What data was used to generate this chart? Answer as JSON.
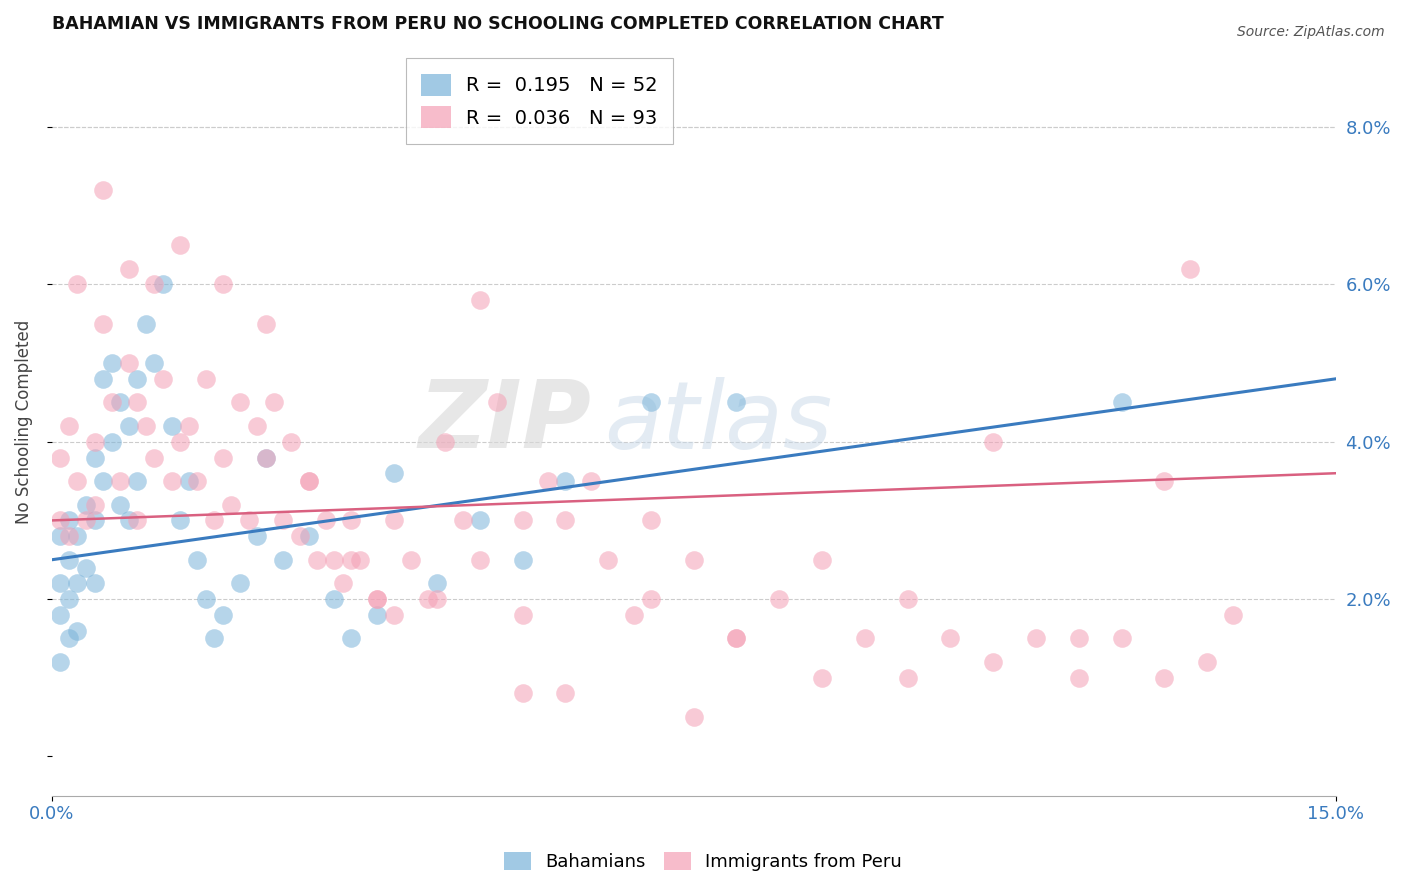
{
  "title": "BAHAMIAN VS IMMIGRANTS FROM PERU NO SCHOOLING COMPLETED CORRELATION CHART",
  "source": "Source: ZipAtlas.com",
  "ylabel": "No Schooling Completed",
  "x_min": 0.0,
  "x_max": 0.15,
  "y_min": -0.005,
  "y_max": 0.09,
  "x_tick_positions": [
    0.0,
    0.15
  ],
  "x_tick_labels": [
    "0.0%",
    "15.0%"
  ],
  "y_ticks_right": [
    0.02,
    0.04,
    0.06,
    0.08
  ],
  "y_tick_labels_right": [
    "2.0%",
    "4.0%",
    "6.0%",
    "8.0%"
  ],
  "bahamians_color": "#7ab3d9",
  "peru_color": "#f4a0b5",
  "blue_line_color": "#3a7bbf",
  "pink_line_color": "#d96080",
  "watermark_zip": "ZIP",
  "watermark_atlas": "atlas",
  "bahamians_x": [
    0.001,
    0.001,
    0.001,
    0.001,
    0.002,
    0.002,
    0.002,
    0.002,
    0.003,
    0.003,
    0.003,
    0.004,
    0.004,
    0.005,
    0.005,
    0.005,
    0.006,
    0.006,
    0.007,
    0.007,
    0.008,
    0.008,
    0.009,
    0.009,
    0.01,
    0.01,
    0.011,
    0.012,
    0.013,
    0.014,
    0.015,
    0.016,
    0.017,
    0.018,
    0.019,
    0.02,
    0.022,
    0.024,
    0.025,
    0.027,
    0.03,
    0.033,
    0.035,
    0.038,
    0.04,
    0.045,
    0.05,
    0.055,
    0.06,
    0.07,
    0.08,
    0.125
  ],
  "bahamians_y": [
    0.028,
    0.022,
    0.018,
    0.012,
    0.03,
    0.025,
    0.02,
    0.015,
    0.028,
    0.022,
    0.016,
    0.032,
    0.024,
    0.038,
    0.03,
    0.022,
    0.048,
    0.035,
    0.05,
    0.04,
    0.045,
    0.032,
    0.042,
    0.03,
    0.048,
    0.035,
    0.055,
    0.05,
    0.06,
    0.042,
    0.03,
    0.035,
    0.025,
    0.02,
    0.015,
    0.018,
    0.022,
    0.028,
    0.038,
    0.025,
    0.028,
    0.02,
    0.015,
    0.018,
    0.036,
    0.022,
    0.03,
    0.025,
    0.035,
    0.045,
    0.045,
    0.045
  ],
  "peru_x": [
    0.001,
    0.001,
    0.002,
    0.002,
    0.003,
    0.004,
    0.005,
    0.005,
    0.006,
    0.007,
    0.008,
    0.009,
    0.01,
    0.01,
    0.011,
    0.012,
    0.013,
    0.014,
    0.015,
    0.016,
    0.017,
    0.018,
    0.019,
    0.02,
    0.021,
    0.022,
    0.023,
    0.024,
    0.025,
    0.026,
    0.027,
    0.028,
    0.029,
    0.03,
    0.031,
    0.032,
    0.033,
    0.034,
    0.035,
    0.036,
    0.038,
    0.04,
    0.042,
    0.044,
    0.046,
    0.048,
    0.05,
    0.052,
    0.055,
    0.058,
    0.06,
    0.063,
    0.065,
    0.068,
    0.07,
    0.075,
    0.08,
    0.085,
    0.09,
    0.095,
    0.1,
    0.105,
    0.11,
    0.115,
    0.12,
    0.125,
    0.13,
    0.133,
    0.135,
    0.138,
    0.003,
    0.006,
    0.009,
    0.012,
    0.015,
    0.02,
    0.025,
    0.03,
    0.035,
    0.04,
    0.045,
    0.05,
    0.055,
    0.06,
    0.07,
    0.08,
    0.09,
    0.1,
    0.11,
    0.12,
    0.13,
    0.038,
    0.055,
    0.075
  ],
  "peru_y": [
    0.038,
    0.03,
    0.042,
    0.028,
    0.035,
    0.03,
    0.04,
    0.032,
    0.055,
    0.045,
    0.035,
    0.05,
    0.045,
    0.03,
    0.042,
    0.038,
    0.048,
    0.035,
    0.04,
    0.042,
    0.035,
    0.048,
    0.03,
    0.038,
    0.032,
    0.045,
    0.03,
    0.042,
    0.038,
    0.045,
    0.03,
    0.04,
    0.028,
    0.035,
    0.025,
    0.03,
    0.025,
    0.022,
    0.03,
    0.025,
    0.02,
    0.018,
    0.025,
    0.02,
    0.04,
    0.03,
    0.025,
    0.045,
    0.03,
    0.035,
    0.03,
    0.035,
    0.025,
    0.018,
    0.03,
    0.025,
    0.015,
    0.02,
    0.025,
    0.015,
    0.02,
    0.015,
    0.012,
    0.015,
    0.01,
    0.015,
    0.01,
    0.062,
    0.012,
    0.018,
    0.06,
    0.072,
    0.062,
    0.06,
    0.065,
    0.06,
    0.055,
    0.035,
    0.025,
    0.03,
    0.02,
    0.058,
    0.008,
    0.008,
    0.02,
    0.015,
    0.01,
    0.01,
    0.04,
    0.015,
    0.035,
    0.02,
    0.018,
    0.005
  ],
  "blue_line_x": [
    0.0,
    0.15
  ],
  "blue_line_y": [
    0.025,
    0.048
  ],
  "pink_line_x": [
    0.0,
    0.15
  ],
  "pink_line_y": [
    0.03,
    0.036
  ]
}
